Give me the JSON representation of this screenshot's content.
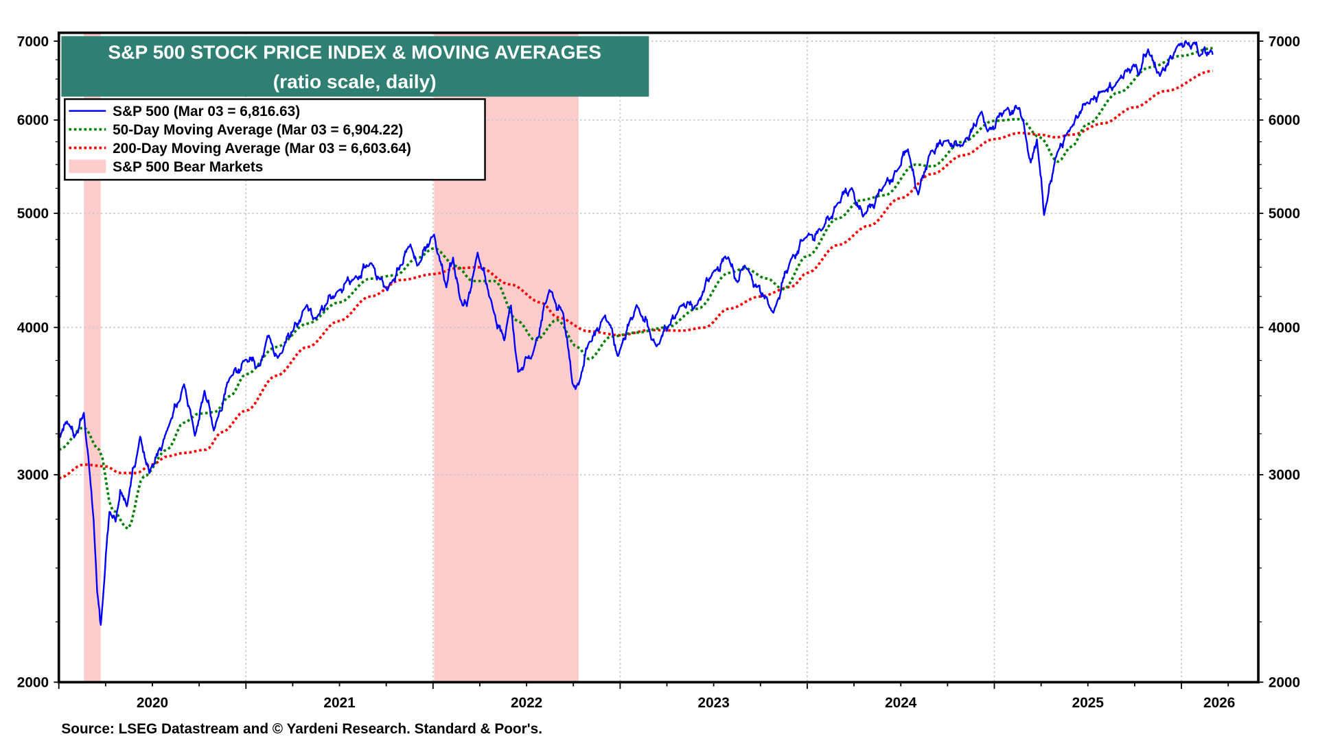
{
  "chart_data": {
    "type": "line",
    "title": "S&P 500 STOCK PRICE INDEX & MOVING AVERAGES",
    "subtitle": "(ratio scale, daily)",
    "y_scale": "log",
    "ylim": [
      2000,
      7115
    ],
    "xlim": [
      "2020-01-01",
      "2026-05-31"
    ],
    "y_ticks": [
      2000,
      3000,
      4000,
      5000,
      6000,
      7000
    ],
    "y_tick_labels": [
      "2000",
      "3000",
      "4000",
      "5000",
      "6000",
      "7000"
    ],
    "x_tick_labels": [
      "2020",
      "2021",
      "2022",
      "2023",
      "2024",
      "2025",
      "2026"
    ],
    "grid": true,
    "legend_placement": "top-left",
    "source": "Source: LSEG Datastream and © Yardeni Research. Standard & Poor's.",
    "colors": {
      "title_bg": "#2f7f73",
      "sp500": "#0000ff",
      "ma50": "#008000",
      "ma200": "#ff0000",
      "bear": "#ffcccc"
    },
    "legend": [
      "S&P 500 (Mar 03 = 6,816.63)",
      "50-Day Moving Average (Mar 03 = 6,904.22)",
      "200-Day Moving Average (Mar 03 = 6,603.64)",
      "S&P 500 Bear Markets"
    ],
    "bear_markets": [
      [
        "2020-02-19",
        "2020-03-23"
      ],
      [
        "2022-01-03",
        "2022-10-12"
      ]
    ],
    "series": [
      {
        "name": "S&P 500",
        "points": [
          [
            "2020-01-01",
            3231
          ],
          [
            "2020-01-17",
            3330
          ],
          [
            "2020-01-31",
            3226
          ],
          [
            "2020-02-19",
            3386
          ],
          [
            "2020-03-09",
            2747
          ],
          [
            "2020-03-16",
            2386
          ],
          [
            "2020-03-23",
            2237
          ],
          [
            "2020-04-09",
            2790
          ],
          [
            "2020-04-21",
            2737
          ],
          [
            "2020-04-30",
            2912
          ],
          [
            "2020-05-13",
            2820
          ],
          [
            "2020-06-08",
            3232
          ],
          [
            "2020-06-26",
            3009
          ],
          [
            "2020-07-31",
            3271
          ],
          [
            "2020-09-02",
            3580
          ],
          [
            "2020-09-23",
            3237
          ],
          [
            "2020-10-12",
            3535
          ],
          [
            "2020-10-30",
            3270
          ],
          [
            "2020-11-30",
            3622
          ],
          [
            "2020-12-31",
            3756
          ],
          [
            "2021-01-29",
            3714
          ],
          [
            "2021-02-12",
            3934
          ],
          [
            "2021-03-04",
            3768
          ],
          [
            "2021-04-30",
            4181
          ],
          [
            "2021-05-12",
            4063
          ],
          [
            "2021-06-30",
            4298
          ],
          [
            "2021-07-30",
            4395
          ],
          [
            "2021-09-02",
            4537
          ],
          [
            "2021-10-04",
            4300
          ],
          [
            "2021-11-18",
            4705
          ],
          [
            "2021-12-01",
            4513
          ],
          [
            "2022-01-03",
            4797
          ],
          [
            "2022-01-27",
            4326
          ],
          [
            "2022-02-09",
            4587
          ],
          [
            "2022-02-23",
            4225
          ],
          [
            "2022-03-08",
            4170
          ],
          [
            "2022-03-29",
            4631
          ],
          [
            "2022-04-29",
            4132
          ],
          [
            "2022-05-20",
            3901
          ],
          [
            "2022-06-02",
            4176
          ],
          [
            "2022-06-16",
            3667
          ],
          [
            "2022-07-14",
            3790
          ],
          [
            "2022-08-16",
            4305
          ],
          [
            "2022-09-12",
            4110
          ],
          [
            "2022-09-30",
            3586
          ],
          [
            "2022-10-12",
            3577
          ],
          [
            "2022-10-31",
            3872
          ],
          [
            "2022-11-30",
            4080
          ],
          [
            "2022-12-13",
            4019
          ],
          [
            "2022-12-28",
            3783
          ],
          [
            "2023-02-02",
            4180
          ],
          [
            "2023-03-13",
            3855
          ],
          [
            "2023-04-28",
            4169
          ],
          [
            "2023-05-31",
            4180
          ],
          [
            "2023-06-30",
            4450
          ],
          [
            "2023-07-31",
            4589
          ],
          [
            "2023-08-18",
            4370
          ],
          [
            "2023-09-01",
            4515
          ],
          [
            "2023-10-27",
            4117
          ],
          [
            "2023-11-30",
            4568
          ],
          [
            "2023-12-29",
            4770
          ],
          [
            "2024-01-31",
            4846
          ],
          [
            "2024-02-29",
            5096
          ],
          [
            "2024-03-28",
            5254
          ],
          [
            "2024-04-19",
            4967
          ],
          [
            "2024-05-31",
            5278
          ],
          [
            "2024-06-28",
            5460
          ],
          [
            "2024-07-16",
            5667
          ],
          [
            "2024-08-05",
            5186
          ],
          [
            "2024-08-30",
            5648
          ],
          [
            "2024-09-30",
            5762
          ],
          [
            "2024-10-31",
            5705
          ],
          [
            "2024-12-06",
            6090
          ],
          [
            "2024-12-19",
            5867
          ],
          [
            "2025-01-23",
            6119
          ],
          [
            "2025-02-19",
            6144
          ],
          [
            "2025-03-13",
            5521
          ],
          [
            "2025-03-25",
            5777
          ],
          [
            "2025-04-08",
            4983
          ],
          [
            "2025-04-30",
            5569
          ],
          [
            "2025-05-30",
            5912
          ],
          [
            "2025-06-30",
            6205
          ],
          [
            "2025-07-31",
            6339
          ],
          [
            "2025-08-29",
            6460
          ],
          [
            "2025-09-30",
            6688
          ],
          [
            "2025-10-10",
            6552
          ],
          [
            "2025-10-28",
            6890
          ],
          [
            "2025-11-20",
            6538
          ],
          [
            "2025-12-24",
            6932
          ],
          [
            "2026-01-27",
            6978
          ],
          [
            "2026-02-05",
            6798
          ],
          [
            "2026-02-27",
            6879
          ],
          [
            "2026-03-03",
            6816.63
          ]
        ]
      },
      {
        "name": "50-Day Moving Average",
        "points": [
          [
            "2020-01-01",
            3150
          ],
          [
            "2020-02-19",
            3290
          ],
          [
            "2020-03-20",
            3150
          ],
          [
            "2020-04-15",
            2800
          ],
          [
            "2020-05-15",
            2700
          ],
          [
            "2020-06-15",
            2990
          ],
          [
            "2020-07-31",
            3150
          ],
          [
            "2020-09-01",
            3320
          ],
          [
            "2020-10-01",
            3380
          ],
          [
            "2020-11-01",
            3390
          ],
          [
            "2020-12-01",
            3500
          ],
          [
            "2021-01-01",
            3650
          ],
          [
            "2021-03-01",
            3850
          ],
          [
            "2021-05-01",
            4030
          ],
          [
            "2021-07-01",
            4200
          ],
          [
            "2021-09-01",
            4400
          ],
          [
            "2021-10-20",
            4430
          ],
          [
            "2021-12-01",
            4580
          ],
          [
            "2022-01-03",
            4670
          ],
          [
            "2022-02-15",
            4510
          ],
          [
            "2022-03-20",
            4380
          ],
          [
            "2022-05-01",
            4380
          ],
          [
            "2022-06-15",
            4050
          ],
          [
            "2022-07-20",
            3900
          ],
          [
            "2022-08-31",
            4060
          ],
          [
            "2022-10-10",
            3850
          ],
          [
            "2022-11-01",
            3760
          ],
          [
            "2022-12-15",
            3930
          ],
          [
            "2023-02-01",
            3960
          ],
          [
            "2023-04-01",
            4000
          ],
          [
            "2023-06-01",
            4150
          ],
          [
            "2023-08-01",
            4450
          ],
          [
            "2023-09-01",
            4490
          ],
          [
            "2023-10-15",
            4400
          ],
          [
            "2023-11-15",
            4310
          ],
          [
            "2024-01-01",
            4600
          ],
          [
            "2024-03-01",
            4950
          ],
          [
            "2024-04-15",
            5130
          ],
          [
            "2024-06-01",
            5180
          ],
          [
            "2024-07-31",
            5500
          ],
          [
            "2024-09-01",
            5480
          ],
          [
            "2024-10-31",
            5750
          ],
          [
            "2024-12-31",
            5990
          ],
          [
            "2025-02-20",
            6010
          ],
          [
            "2025-03-31",
            5800
          ],
          [
            "2025-05-05",
            5530
          ],
          [
            "2025-06-01",
            5700
          ],
          [
            "2025-07-01",
            5950
          ],
          [
            "2025-08-31",
            6330
          ],
          [
            "2025-10-31",
            6650
          ],
          [
            "2025-12-31",
            6800
          ],
          [
            "2026-03-03",
            6904.22
          ]
        ]
      },
      {
        "name": "200-Day Moving Average",
        "points": [
          [
            "2020-01-01",
            2980
          ],
          [
            "2020-02-19",
            3060
          ],
          [
            "2020-03-31",
            3050
          ],
          [
            "2020-05-01",
            3010
          ],
          [
            "2020-06-01",
            3010
          ],
          [
            "2020-07-01",
            3060
          ],
          [
            "2020-08-01",
            3110
          ],
          [
            "2020-09-01",
            3130
          ],
          [
            "2020-10-15",
            3150
          ],
          [
            "2020-11-15",
            3260
          ],
          [
            "2021-01-01",
            3400
          ],
          [
            "2021-03-01",
            3640
          ],
          [
            "2021-05-01",
            3850
          ],
          [
            "2021-07-01",
            4050
          ],
          [
            "2021-09-01",
            4250
          ],
          [
            "2021-11-01",
            4390
          ],
          [
            "2022-01-03",
            4440
          ],
          [
            "2022-02-15",
            4490
          ],
          [
            "2022-03-31",
            4500
          ],
          [
            "2022-06-01",
            4350
          ],
          [
            "2022-07-31",
            4200
          ],
          [
            "2022-09-01",
            4080
          ],
          [
            "2022-11-01",
            3970
          ],
          [
            "2023-01-01",
            3940
          ],
          [
            "2023-03-01",
            3980
          ],
          [
            "2023-05-01",
            3975
          ],
          [
            "2023-06-15",
            4000
          ],
          [
            "2023-08-01",
            4150
          ],
          [
            "2023-10-01",
            4250
          ],
          [
            "2023-12-01",
            4330
          ],
          [
            "2024-01-01",
            4450
          ],
          [
            "2024-03-01",
            4700
          ],
          [
            "2024-05-01",
            4880
          ],
          [
            "2024-07-01",
            5150
          ],
          [
            "2024-09-01",
            5400
          ],
          [
            "2024-11-01",
            5600
          ],
          [
            "2025-01-01",
            5780
          ],
          [
            "2025-02-20",
            5850
          ],
          [
            "2025-04-01",
            5830
          ],
          [
            "2025-05-01",
            5800
          ],
          [
            "2025-06-01",
            5830
          ],
          [
            "2025-08-01",
            5960
          ],
          [
            "2025-10-01",
            6150
          ],
          [
            "2025-12-01",
            6350
          ],
          [
            "2026-03-03",
            6603.64
          ]
        ]
      }
    ]
  }
}
